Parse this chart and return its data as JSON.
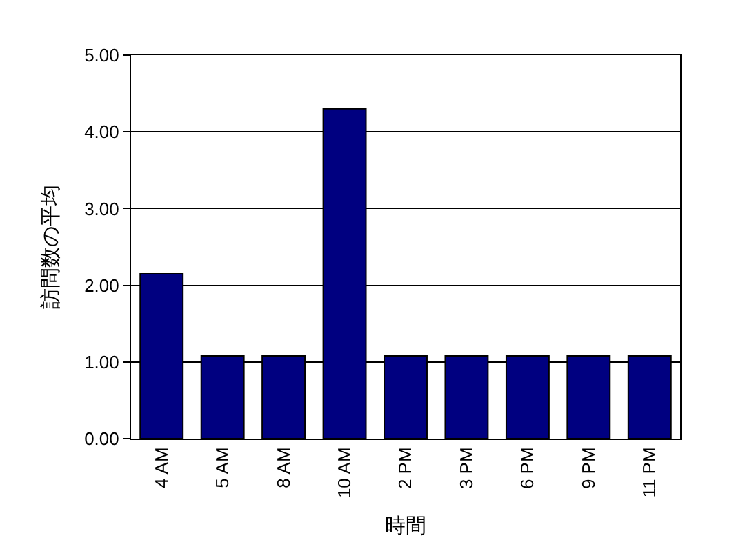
{
  "chart_data": {
    "type": "bar",
    "xlabel": "時間",
    "ylabel": "訪問数の平均",
    "categories": [
      "4 AM",
      "5 AM",
      "8 AM",
      "10 AM",
      "2 PM",
      "3 PM",
      "6 PM",
      "9 PM",
      "11 PM"
    ],
    "values": [
      2.15,
      1.08,
      1.08,
      4.3,
      1.08,
      1.08,
      1.08,
      1.08,
      1.08
    ],
    "color": "#000080",
    "ylim": [
      0,
      5
    ],
    "yticks": [
      {
        "value": 0,
        "label": "0.00"
      },
      {
        "value": 1,
        "label": "1.00"
      },
      {
        "value": 2,
        "label": "2.00"
      },
      {
        "value": 3,
        "label": "3.00"
      },
      {
        "value": 4,
        "label": "4.00"
      },
      {
        "value": 5,
        "label": "5.00"
      }
    ],
    "grid": "y",
    "legend": false
  }
}
